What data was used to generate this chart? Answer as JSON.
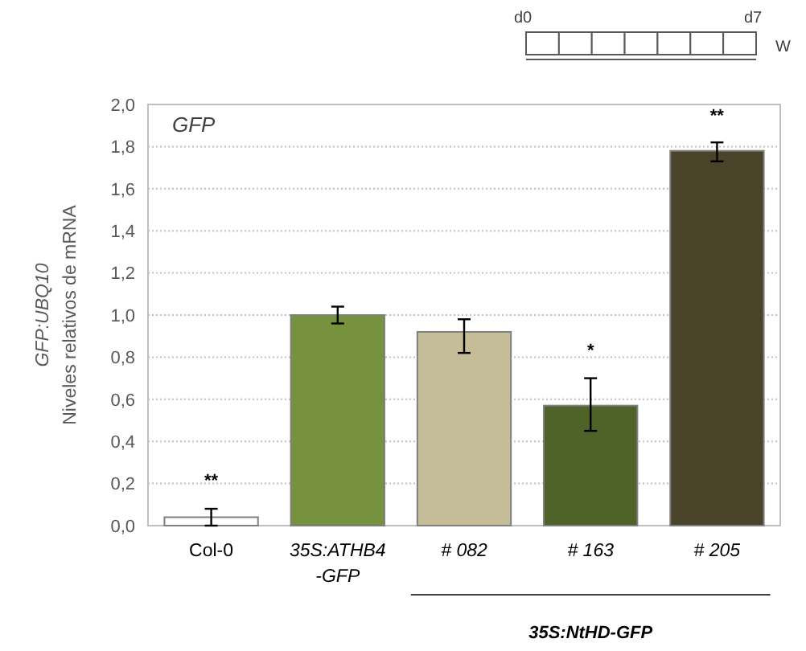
{
  "chart_data": {
    "type": "bar",
    "ylabel": "GFP:UBQ10\nNiveles relativos de mRNA",
    "categories": [
      "Col-0",
      "35S:ATHB4-GFP",
      "# 082",
      "# 163",
      "# 205"
    ],
    "values": [
      0.04,
      1.0,
      0.92,
      0.57,
      1.78
    ],
    "colors": [
      "#ffffff",
      "#76923c",
      "#c4bd97",
      "#4f6228",
      "#494429"
    ],
    "errors": [
      0.04,
      0.04,
      [
        0.82,
        0.98
      ],
      [
        0.45,
        0.7
      ],
      [
        1.73,
        1.82
      ]
    ],
    "ylim": [
      0,
      2
    ],
    "yticks": [
      {
        "value": 0,
        "label": "0,0"
      },
      {
        "value": 0.2,
        "label": "0,2"
      },
      {
        "value": 0.4,
        "label": "0,4"
      },
      {
        "value": 0.6,
        "label": "0,6"
      },
      {
        "value": 0.8,
        "label": "0,8"
      },
      {
        "value": 1.0,
        "label": "1,0"
      },
      {
        "value": 1.2,
        "label": "1,2"
      },
      {
        "value": 1.4,
        "label": "1,4"
      },
      {
        "value": 1.6,
        "label": "1,6"
      },
      {
        "value": 1.8,
        "label": "1,8"
      },
      {
        "value": 2.0,
        "label": "2,0"
      }
    ],
    "grid": "y",
    "annotations": [
      "**",
      "*",
      "**",
      "GFP",
      "35S:NtHD-GFP",
      "d0",
      "d7",
      "W"
    ]
  }
}
